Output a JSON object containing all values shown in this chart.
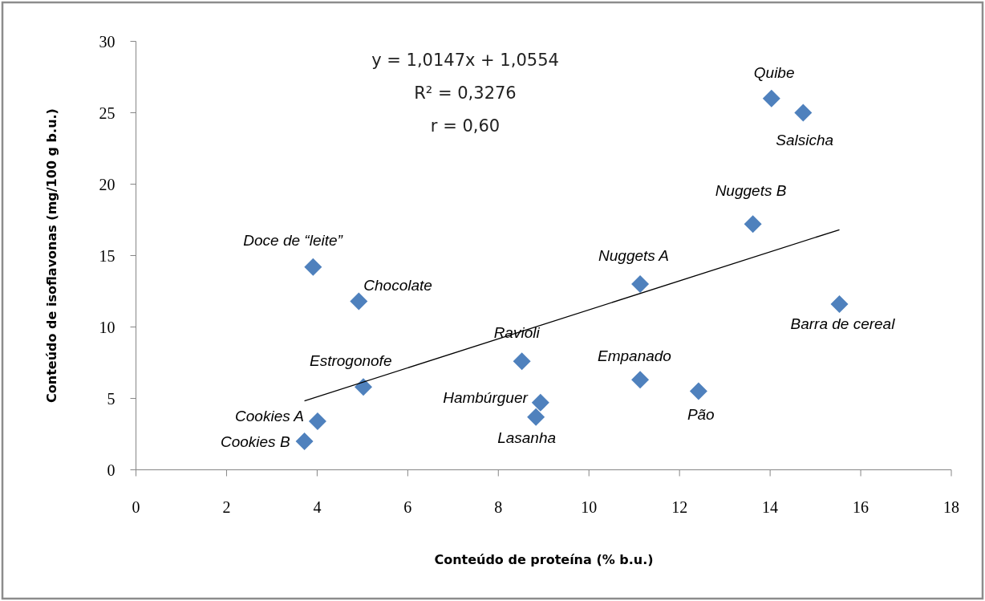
{
  "chart_data": {
    "type": "scatter",
    "xlabel": "Conteúdo de proteína (% b.u.)",
    "ylabel": "Conteúdo de isoflavonas (mg/100 g b.u.)",
    "xlim": [
      0,
      18
    ],
    "xticks": [
      0,
      2,
      4,
      6,
      8,
      10,
      12,
      14,
      16,
      18
    ],
    "ylim": [
      0,
      30
    ],
    "yticks": [
      0,
      5,
      10,
      15,
      20,
      25,
      30
    ],
    "marker": "diamond",
    "series": [
      {
        "color": "#4f81bd",
        "x": [
          3.72,
          4.01,
          5.02,
          4.92,
          3.91,
          8.52,
          8.93,
          8.83,
          11.13,
          12.42,
          11.13,
          13.62,
          14.03,
          14.73,
          15.53
        ],
        "values": [
          2.0,
          3.4,
          5.8,
          11.8,
          14.2,
          7.6,
          4.7,
          3.7,
          6.3,
          5.5,
          13.0,
          17.2,
          26.0,
          25.0,
          11.6
        ]
      },
      {
        "type": "line",
        "color": "#000000",
        "marker": "none",
        "x": [
          3.72,
          15.53
        ],
        "values": [
          4.83,
          16.81
        ]
      }
    ],
    "annotations": [
      {
        "text": "Cookies B",
        "x": 3.72,
        "y": 2.0
      },
      {
        "text": "Cookies A",
        "x": 4.01,
        "y": 3.4
      },
      {
        "text": "Estrogonofe",
        "x": 5.02,
        "y": 5.8
      },
      {
        "text": "Chocolate",
        "x": 4.92,
        "y": 11.8
      },
      {
        "text": "Doce de “leite”",
        "x": 3.91,
        "y": 14.2
      },
      {
        "text": "Ravioli",
        "x": 8.52,
        "y": 7.6
      },
      {
        "text": "Hambúrguer",
        "x": 8.93,
        "y": 4.7
      },
      {
        "text": "Lasanha",
        "x": 8.83,
        "y": 3.7
      },
      {
        "text": "Empanado",
        "x": 11.13,
        "y": 6.3
      },
      {
        "text": "Pão",
        "x": 12.42,
        "y": 5.5
      },
      {
        "text": "Nuggets A",
        "x": 11.13,
        "y": 13.0
      },
      {
        "text": "Nuggets B",
        "x": 13.62,
        "y": 17.2
      },
      {
        "text": "Quibe",
        "x": 14.03,
        "y": 26.0
      },
      {
        "text": "Salsicha",
        "x": 14.73,
        "y": 25.0
      },
      {
        "text": "Barra de cereal",
        "x": 15.53,
        "y": 11.6
      },
      "y = 1,0147x + 1,0554",
      "R² = 0,3276",
      "r = 0,60"
    ]
  }
}
